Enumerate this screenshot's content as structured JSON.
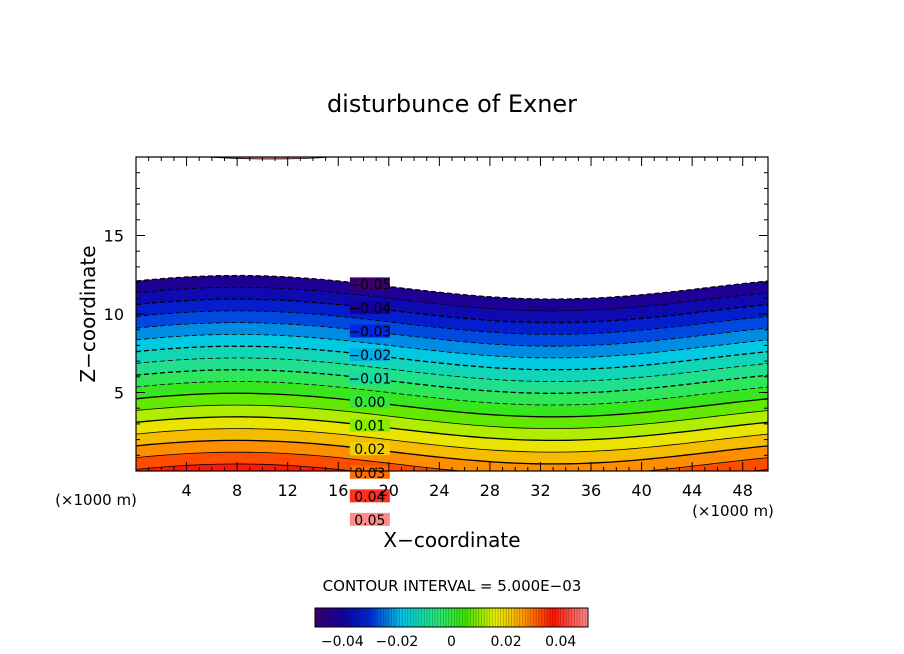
{
  "chart_data": {
    "type": "contour",
    "title": "disturbunce of Exner",
    "xlabel": "X−coordinate",
    "ylabel": "Z−coordinate",
    "x_unit_left": "(×1000 m)",
    "x_unit_right": "(×1000 m)",
    "xlim": [
      0,
      50
    ],
    "ylim": [
      0,
      20
    ],
    "x_ticks": [
      "4",
      "8",
      "12",
      "16",
      "20",
      "24",
      "28",
      "32",
      "36",
      "40",
      "44",
      "48"
    ],
    "x_tick_values": [
      4,
      8,
      12,
      16,
      20,
      24,
      28,
      32,
      36,
      40,
      44,
      48
    ],
    "y_ticks": [
      "5",
      "10",
      "15"
    ],
    "y_tick_values": [
      5,
      10,
      15
    ],
    "contour_interval_text": "CONTOUR INTERVAL = 5.000E−03",
    "contour_interval": 0.005,
    "level_min": -0.05,
    "level_max": 0.055,
    "base_profile": {
      "z_at_0": 4.2,
      "z_per_unit": -150
    },
    "wave": {
      "amplitude": 0.75,
      "wavelength": 50,
      "phase_x": 8
    },
    "contour_labels": [
      {
        "text": "0.05",
        "value": 0.05
      },
      {
        "text": "0.04",
        "value": 0.04
      },
      {
        "text": "0.03",
        "value": 0.03
      },
      {
        "text": "0.02",
        "value": 0.02
      },
      {
        "text": "0.01",
        "value": 0.01
      },
      {
        "text": "0.00",
        "value": 0.0
      },
      {
        "text": "−0.01",
        "value": -0.01
      },
      {
        "text": "−0.02",
        "value": -0.02
      },
      {
        "text": "−0.03",
        "value": -0.03
      },
      {
        "text": "−0.04",
        "value": -0.04
      },
      {
        "text": "−0.05",
        "value": -0.05
      }
    ],
    "colorbar": {
      "min": -0.05,
      "max": 0.05,
      "tick_labels": [
        "−0.04",
        "−0.02",
        "0",
        "0.02",
        "0.04"
      ],
      "tick_values": [
        -0.04,
        -0.02,
        0,
        0.02,
        0.04
      ]
    },
    "colors": {
      "low": "#3a0a6e",
      "high": "#ff7a7a",
      "top_cap": "#f09090"
    }
  }
}
